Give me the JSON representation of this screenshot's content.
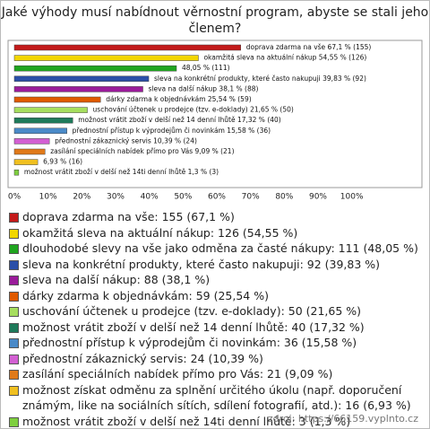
{
  "chart_data": {
    "type": "barh",
    "title": "Jaké výhody musí nabídnout věrnostní program, abyste se stali jeho členem?",
    "values": [
      67.1,
      54.55,
      48.05,
      39.83,
      38.1,
      25.54,
      21.65,
      17.32,
      15.58,
      10.39,
      9.09,
      6.93,
      1.3
    ],
    "value_labels": [
      "doprava zdarma na vše 67,1 % (155)",
      "okamžitá sleva na aktuální nákup 54,55 % (126)",
      "48,05 % (111)",
      "sleva na konkrétní produkty, které často nakupuji 39,83 % (92)",
      "sleva na další nákup 38,1 % (88)",
      "dárky zdarma k objednávkám 25,54 % (59)",
      "uschování účtenek u prodejce (tzv. e-doklady) 21,65 % (50)",
      "možnost vrátit zboží v delší než 14 denní lhůtě 17,32 % (40)",
      "přednostní přístup k výprodejům či novinkám 15,58 % (36)",
      "přednostní zákaznický servis 10,39 % (24)",
      "zasílání speciálních nabídek přímo pro Vás 9,09 % (21)",
      "6,93 % (16)",
      "možnost vrátit zboží v delší než 14ti denní lhůtě 1,3 % (3)"
    ],
    "legend": [
      "doprava zdarma na vše: 155 (67,1 %)",
      "okamžitá sleva na aktuální nákup: 126 (54,55 %)",
      "dlouhodobé slevy na vše jako odměna za časté nákupy: 111 (48,05 %)",
      "sleva na konkrétní produkty, které často nakupuji: 92 (39,83 %)",
      "sleva na další nákup: 88 (38,1 %)",
      "dárky zdarma k objednávkám: 59 (25,54 %)",
      "uschování účtenek u prodejce (tzv. e-doklady): 50 (21,65 %)",
      "možnost vrátit zboží v delší než 14 denní lhůtě: 40 (17,32 %)",
      "přednostní přístup k výprodejům či novinkám: 36 (15,58 %)",
      "přednostní zákaznický servis: 24 (10,39 %)",
      "zasílání speciálních nabídek přímo pro Vás: 21 (9,09 %)",
      "možnost získat odměnu za splnění určitého úkolu (např. doporučení známým, like na sociálních sítích, sdílení fotografií, atd.): 16 (6,93 %)",
      "možnost vrátit zboží v delší než 14ti denní lhůtě: 3 (1,3 %)"
    ],
    "colors": [
      "#c41a1a",
      "#f2d600",
      "#1fa51f",
      "#2b4fa8",
      "#9a1c9a",
      "#e05a00",
      "#a6de5e",
      "#1e7a5a",
      "#4a8ac8",
      "#d25fd2",
      "#e07a1a",
      "#f0c020",
      "#7ecf3e"
    ],
    "xlim": [
      0,
      120
    ],
    "xticks": [
      {
        "value": 0,
        "label": "0%"
      },
      {
        "value": 10,
        "label": "10%"
      },
      {
        "value": 20,
        "label": "20%"
      },
      {
        "value": 30,
        "label": "30%"
      },
      {
        "value": 40,
        "label": "40%"
      },
      {
        "value": 50,
        "label": "50%"
      },
      {
        "value": 60,
        "label": "60%"
      },
      {
        "value": 70,
        "label": "70%"
      },
      {
        "value": 80,
        "label": "80%"
      },
      {
        "value": 90,
        "label": "90%"
      },
      {
        "value": 100,
        "label": "100%"
      }
    ],
    "source": "zdroj: https://66159.vyplnto.cz"
  }
}
